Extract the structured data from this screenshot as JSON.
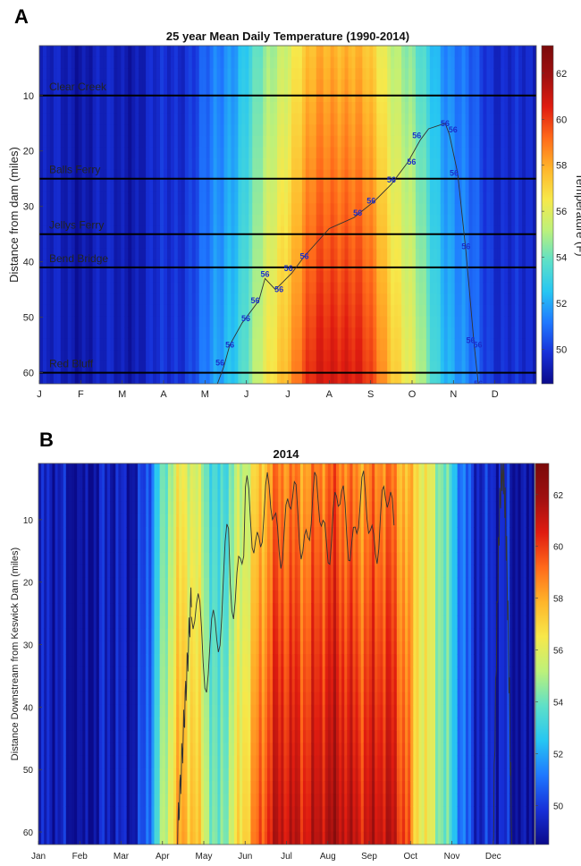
{
  "chart_data": [
    {
      "panel": "A",
      "type": "heatmap",
      "title": "25 year Mean Daily Temperature (1990-2014)",
      "ylabel": "Distance from dam (miles)",
      "xlabel": "",
      "x_ticks": [
        "J",
        "F",
        "M",
        "A",
        "M",
        "J",
        "J",
        "A",
        "S",
        "O",
        "N",
        "D"
      ],
      "y_ticks": [
        10,
        20,
        30,
        40,
        50,
        60
      ],
      "ylim": [
        1,
        62
      ],
      "colorbar": {
        "label": "Temperature (F)",
        "ticks": [
          50,
          52,
          54,
          56,
          58,
          60,
          62
        ],
        "range": [
          48.5,
          63.2
        ]
      },
      "contour_level": 56,
      "contour_labels": [
        "56",
        "56",
        "56",
        "56",
        "56",
        "56",
        "56",
        "56",
        "56",
        "56",
        "56",
        "56",
        "56",
        "56",
        "56",
        "56",
        "56",
        "56",
        "56",
        "56"
      ],
      "contour_path": [
        [
          4.3,
          62
        ],
        [
          4.45,
          59
        ],
        [
          4.6,
          55
        ],
        [
          4.9,
          51
        ],
        [
          5.3,
          47
        ],
        [
          5.45,
          43
        ],
        [
          5.7,
          45
        ],
        [
          6.1,
          42
        ],
        [
          6.4,
          39
        ],
        [
          7.0,
          34
        ],
        [
          7.6,
          32
        ],
        [
          8.1,
          29
        ],
        [
          8.5,
          26
        ],
        [
          8.9,
          22
        ],
        [
          9.2,
          18
        ],
        [
          9.4,
          16
        ],
        [
          9.8,
          15
        ],
        [
          9.9,
          17
        ],
        [
          10.1,
          24
        ],
        [
          10.3,
          38
        ],
        [
          10.5,
          55
        ],
        [
          10.6,
          62
        ]
      ],
      "reference_lines": [
        {
          "name": "Clear Creek",
          "y": 10
        },
        {
          "name": "Balls Ferry",
          "y": 25
        },
        {
          "name": "Jellys Ferry",
          "y": 35
        },
        {
          "name": "Bend Bridge",
          "y": 41
        },
        {
          "name": "Red Bluff",
          "y": 60
        }
      ]
    },
    {
      "panel": "B",
      "type": "heatmap",
      "title": "2014",
      "ylabel": "Distance Downstream from Keswick Dam (miles)",
      "xlabel": "",
      "x_ticks": [
        "Jan",
        "Feb",
        "Mar",
        "Apr",
        "May",
        "Jun",
        "Jul",
        "Aug",
        "Sep",
        "Oct",
        "Nov",
        "Dec"
      ],
      "y_ticks": [
        10,
        20,
        30,
        40,
        50,
        60
      ],
      "ylim": [
        1,
        62
      ],
      "colorbar": {
        "label": "",
        "ticks": [
          50,
          52,
          54,
          56,
          58,
          60,
          62
        ],
        "range": [
          48.5,
          63.2
        ]
      },
      "contour_level": 56
    }
  ],
  "colors": {
    "colormap": [
      "#0a0a8a",
      "#1730d8",
      "#1f78ff",
      "#27c6f2",
      "#5ee0c8",
      "#bdf17a",
      "#f7e84a",
      "#ffb52a",
      "#ff6a1a",
      "#e01c10",
      "#a01010",
      "#7a0a0a"
    ]
  }
}
